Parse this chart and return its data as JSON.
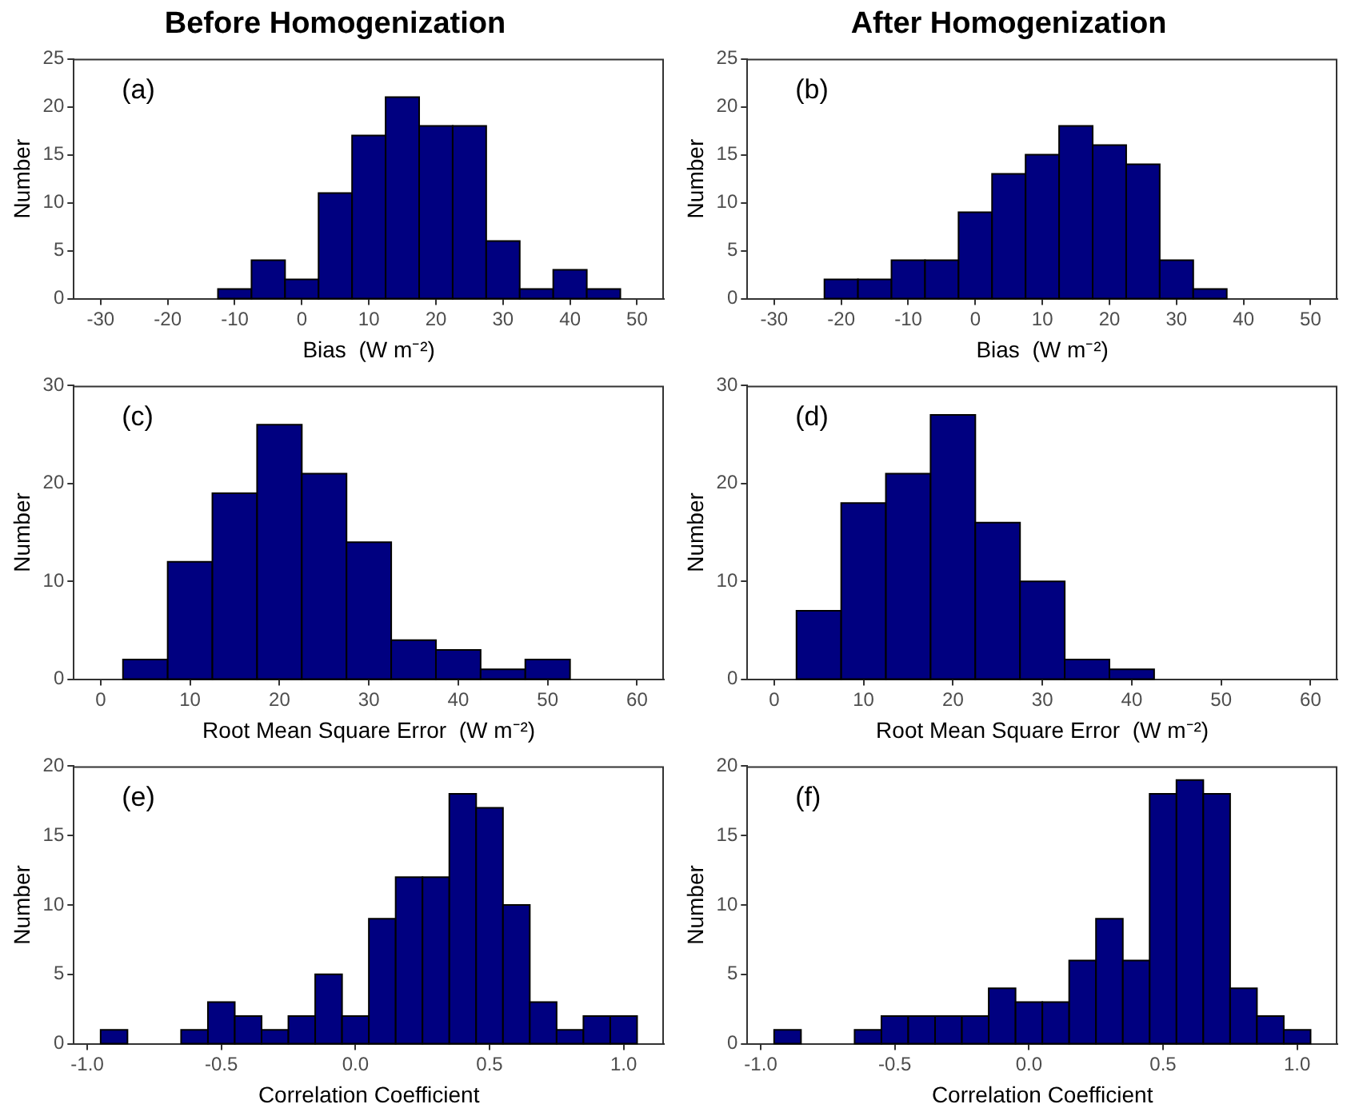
{
  "chart_data": [
    {
      "type": "histogram",
      "title": "Before Homogenization",
      "annotations": [
        "(a)"
      ],
      "xlabel": "Bias  (W m⁻²)",
      "ylabel": "Number",
      "color": "#000080",
      "bins": [
        -12.5,
        -7.5,
        -2.5,
        2.5,
        7.5,
        12.5,
        17.5,
        22.5,
        27.5,
        32.5,
        37.5,
        42.5,
        47.5
      ],
      "values": [
        1,
        4,
        2,
        11,
        17,
        21,
        18,
        18,
        6,
        1,
        3,
        1
      ],
      "xlim": [
        -34,
        54
      ],
      "xticks": [
        -30,
        -20,
        -10,
        0,
        10,
        20,
        30,
        40,
        50
      ],
      "ylim": [
        0,
        25
      ],
      "yticks": [
        0,
        5,
        10,
        15,
        20,
        25
      ]
    },
    {
      "type": "histogram",
      "title": "After Homogenization",
      "annotations": [
        "(b)"
      ],
      "xlabel": "Bias  (W m⁻²)",
      "ylabel": "Number",
      "color": "#000080",
      "bins": [
        -22.5,
        -17.5,
        -12.5,
        -7.5,
        -2.5,
        2.5,
        7.5,
        12.5,
        17.5,
        22.5,
        27.5,
        32.5,
        37.5
      ],
      "values": [
        2,
        2,
        4,
        4,
        9,
        13,
        15,
        18,
        16,
        14,
        4,
        1
      ],
      "xlim": [
        -34,
        54
      ],
      "xticks": [
        -30,
        -20,
        -10,
        0,
        10,
        20,
        30,
        40,
        50
      ],
      "ylim": [
        0,
        25
      ],
      "yticks": [
        0,
        5,
        10,
        15,
        20,
        25
      ]
    },
    {
      "type": "histogram",
      "annotations": [
        "(c)"
      ],
      "xlabel": "Root Mean Square Error  (W m⁻²)",
      "ylabel": "Number",
      "color": "#000080",
      "bins": [
        2.5,
        7.5,
        12.5,
        17.5,
        22.5,
        27.5,
        32.5,
        37.5,
        42.5,
        47.5,
        52.5
      ],
      "values": [
        2,
        12,
        19,
        26,
        21,
        14,
        4,
        3,
        1,
        2
      ],
      "xlim": [
        -3,
        63
      ],
      "xticks": [
        0,
        10,
        20,
        30,
        40,
        50,
        60
      ],
      "ylim": [
        0,
        30
      ],
      "yticks": [
        0,
        10,
        20,
        30
      ]
    },
    {
      "type": "histogram",
      "annotations": [
        "(d)"
      ],
      "xlabel": "Root Mean Square Error  (W m⁻²)",
      "ylabel": "Number",
      "color": "#000080",
      "bins": [
        2.5,
        7.5,
        12.5,
        17.5,
        22.5,
        27.5,
        32.5,
        37.5,
        42.5
      ],
      "values": [
        7,
        18,
        21,
        27,
        16,
        10,
        2,
        1
      ],
      "xlim": [
        -3,
        63
      ],
      "xticks": [
        0,
        10,
        20,
        30,
        40,
        50,
        60
      ],
      "ylim": [
        0,
        30
      ],
      "yticks": [
        0,
        10,
        20,
        30
      ]
    },
    {
      "type": "histogram",
      "annotations": [
        "(e)"
      ],
      "xlabel": "Correlation Coefficient",
      "ylabel": "Number",
      "color": "#000080",
      "bins": [
        -0.95,
        -0.85,
        -0.75,
        -0.65,
        -0.55,
        -0.45,
        -0.35,
        -0.25,
        -0.15,
        -0.05,
        0.05,
        0.15,
        0.25,
        0.35,
        0.45,
        0.55,
        0.65,
        0.75,
        0.85,
        0.95,
        1.05
      ],
      "values": [
        1,
        0,
        0,
        1,
        3,
        2,
        1,
        2,
        5,
        2,
        9,
        12,
        12,
        18,
        17,
        10,
        3,
        1,
        2,
        2
      ],
      "xlim": [
        -1.05,
        1.15
      ],
      "xticks": [
        {
          "value": -1,
          "label": "-1.0"
        },
        {
          "value": -0.5,
          "label": "-0.5"
        },
        {
          "value": 0,
          "label": "0.0"
        },
        {
          "value": 0.5,
          "label": "0.5"
        },
        {
          "value": 1,
          "label": "1.0"
        }
      ],
      "ylim": [
        0,
        20
      ],
      "yticks": [
        0,
        5,
        10,
        15,
        20
      ]
    },
    {
      "type": "histogram",
      "annotations": [
        "(f)"
      ],
      "xlabel": "Correlation Coefficient",
      "ylabel": "Number",
      "color": "#000080",
      "bins": [
        -0.95,
        -0.85,
        -0.75,
        -0.65,
        -0.55,
        -0.45,
        -0.35,
        -0.25,
        -0.15,
        -0.05,
        0.05,
        0.15,
        0.25,
        0.35,
        0.45,
        0.55,
        0.65,
        0.75,
        0.85,
        0.95,
        1.05
      ],
      "values": [
        1,
        0,
        0,
        1,
        2,
        2,
        2,
        2,
        4,
        3,
        3,
        6,
        9,
        6,
        18,
        19,
        18,
        4,
        2,
        1
      ],
      "xlim": [
        -1.05,
        1.15
      ],
      "xticks": [
        {
          "value": -1,
          "label": "-1.0"
        },
        {
          "value": -0.5,
          "label": "-0.5"
        },
        {
          "value": 0,
          "label": "0.0"
        },
        {
          "value": 0.5,
          "label": "0.5"
        },
        {
          "value": 1,
          "label": "1.0"
        }
      ],
      "ylim": [
        0,
        20
      ],
      "yticks": [
        0,
        5,
        10,
        15,
        20
      ]
    }
  ]
}
